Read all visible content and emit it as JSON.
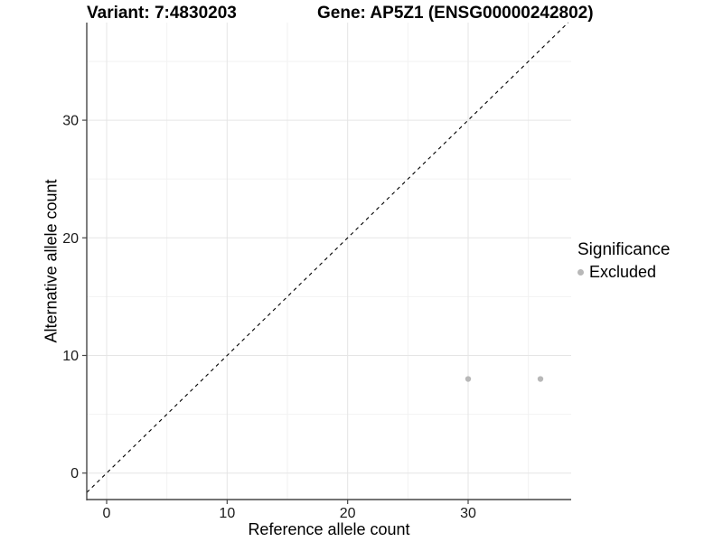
{
  "title": {
    "variant": "Variant: 7:4830203",
    "gene": "Gene: AP5Z1 (ENSG00000242802)"
  },
  "legend": {
    "title": "Significance",
    "items": [
      {
        "label": "Excluded",
        "color": "#b8b8b8",
        "marker": "circle"
      }
    ]
  },
  "colors": {
    "background": "#ffffff",
    "text": "#000000",
    "axis_line": "#474747",
    "tick_label": "#1a1a1a",
    "grid_major": "#e5e5e5",
    "grid_minor": "#f2f2f2",
    "point": "#b8b8b8",
    "reference_line": "#000000"
  },
  "chart_data": {
    "type": "scatter",
    "title": "Variant: 7:4830203   Gene: AP5Z1 (ENSG00000242802)",
    "xlabel": "Reference allele count",
    "ylabel": "Alternative allele count",
    "xlim": [
      -1.65,
      38.55
    ],
    "ylim": [
      -2.25,
      38.3
    ],
    "x_ticks": [
      0,
      10,
      20,
      30
    ],
    "y_ticks": [
      0,
      10,
      20,
      30
    ],
    "x_minor_ticks": [
      5,
      15,
      25,
      35
    ],
    "y_minor_ticks": [
      5,
      15,
      25,
      35
    ],
    "grid": "major+minor",
    "legend_position": "right",
    "series": [
      {
        "name": "Excluded",
        "color": "#b8b8b8",
        "marker_radius": 3.2,
        "points": [
          [
            30,
            8
          ],
          [
            36,
            8
          ]
        ]
      }
    ],
    "reference_line": {
      "type": "identity",
      "equation": "y = x",
      "style": "dashed",
      "color": "#000000"
    }
  }
}
